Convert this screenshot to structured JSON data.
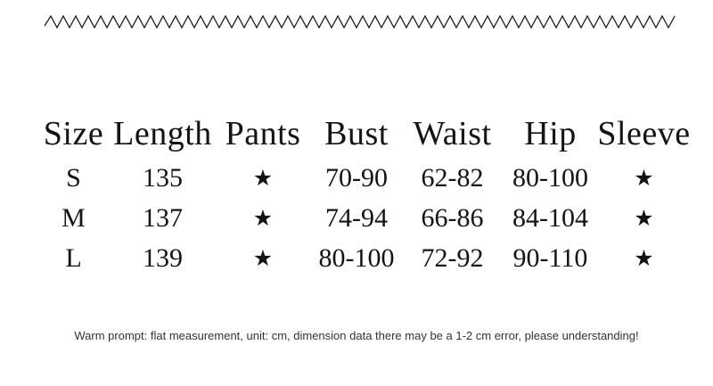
{
  "table": {
    "headers": [
      "Size",
      "Length",
      "Pants",
      "Bust",
      "Waist",
      "Hip",
      "Sleeve"
    ],
    "rows": [
      [
        "S",
        "135",
        "★",
        "70-90",
        "62-82",
        "80-100",
        "★"
      ],
      [
        "M",
        "137",
        "★",
        "74-94",
        "66-86",
        "84-104",
        "★"
      ],
      [
        "L",
        "139",
        "★",
        "80-100",
        "72-92",
        "90-110",
        "★"
      ]
    ]
  },
  "footnote": "Warm prompt: flat measurement, unit: cm, dimension data there may be a 1-2 cm error, please understanding!",
  "icons": {
    "star": "star-icon"
  },
  "colors": {
    "text": "#141414",
    "footnote": "#333333",
    "divider": "#1c1c1c"
  }
}
